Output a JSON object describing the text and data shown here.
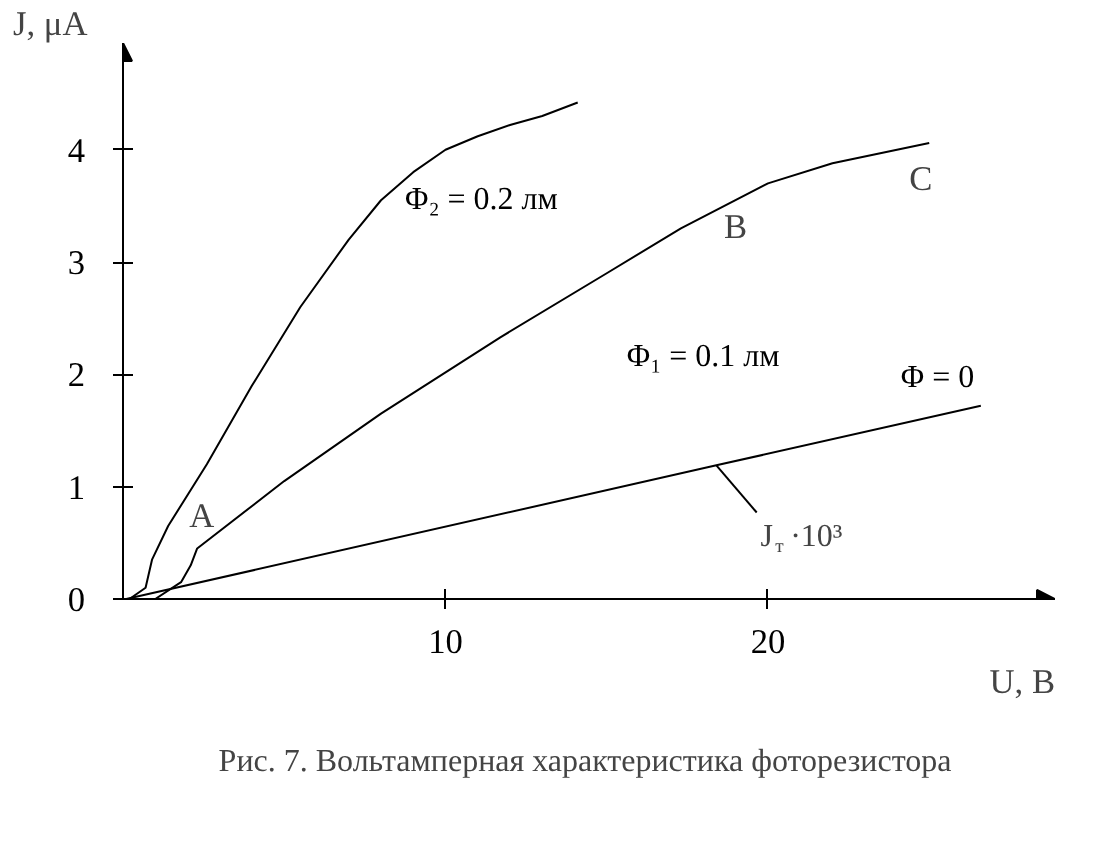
{
  "chart_data": {
    "type": "line",
    "xlabel": "U, B",
    "ylabel": "J, μA",
    "xlim": [
      0,
      28.9
    ],
    "ylim": [
      0,
      4.95
    ],
    "xticks": [
      10,
      20
    ],
    "yticks": [
      0,
      1,
      2,
      3,
      4
    ],
    "series": [
      {
        "name": "Φ₂ = 0.2 лм",
        "color": "#000000",
        "x": [
          0.2,
          0.7,
          0.9,
          1.4,
          2.6,
          4,
          5.5,
          7,
          8,
          9,
          10,
          11,
          12,
          13,
          14.1
        ],
        "values": [
          0,
          0.1,
          0.35,
          0.65,
          1.2,
          1.9,
          2.6,
          3.2,
          3.55,
          3.8,
          4.0,
          4.12,
          4.22,
          4.3,
          4.42
        ]
      },
      {
        "name": "Φ₁ = 0.1 лм",
        "color": "#000000",
        "x": [
          1.0,
          1.8,
          2.1,
          2.3,
          5,
          8,
          11.7,
          15,
          17.3,
          20,
          22,
          25
        ],
        "values": [
          0,
          0.15,
          0.3,
          0.45,
          1.05,
          1.65,
          2.33,
          2.9,
          3.3,
          3.7,
          3.88,
          4.06
        ]
      },
      {
        "name": "Φ = 0",
        "color": "#000000",
        "x": [
          0.1,
          18.4,
          26.6
        ],
        "values": [
          0,
          1.19,
          1.72
        ]
      }
    ],
    "annotations": [
      {
        "text": "A",
        "x": 2.3,
        "y": 0.45
      },
      {
        "text": "B",
        "x": 20,
        "y": 3.7
      },
      {
        "text": "C",
        "x": 25,
        "y": 4.06
      },
      {
        "text": "J$_{т}$·10³",
        "x": 18.4,
        "y": 1.19
      },
      "Рис. 7.  Вольтамперная характеристика фоторезистора"
    ]
  }
}
